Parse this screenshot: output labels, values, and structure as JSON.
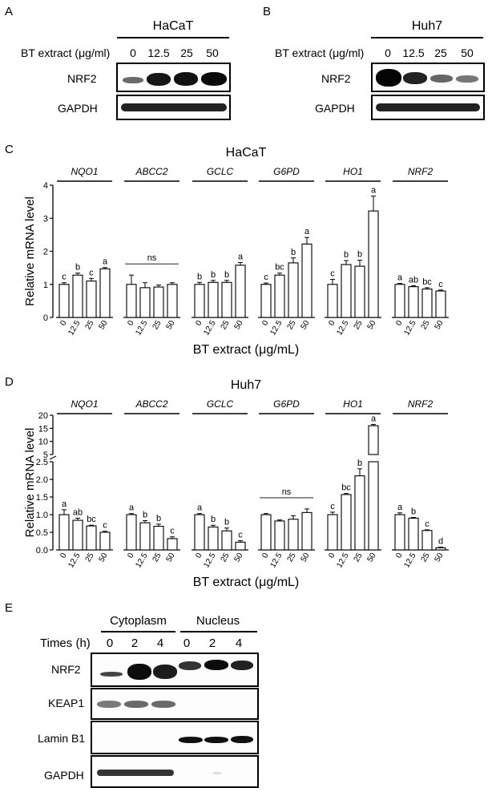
{
  "panel_labels": {
    "a": "A",
    "b": "B",
    "c": "C",
    "d": "D",
    "e": "E"
  },
  "panel_a": {
    "cell_line": "HaCaT",
    "treatment_label": "BT extract (μg/ml)",
    "doses": [
      "0",
      "12.5",
      "25",
      "50"
    ],
    "rows": [
      "NRF2",
      "GAPDH"
    ]
  },
  "panel_b": {
    "cell_line": "Huh7",
    "treatment_label": "BT extract (μg/ml)",
    "doses": [
      "0",
      "12.5",
      "25",
      "50"
    ],
    "rows": [
      "NRF2",
      "GAPDH"
    ]
  },
  "panel_e": {
    "groups": [
      "Cytoplasm",
      "Nucleus"
    ],
    "time_label": "Times (h)",
    "times": [
      "0",
      "2",
      "4",
      "0",
      "2",
      "4"
    ],
    "rows": [
      "NRF2",
      "KEAP1",
      "Lamin B1",
      "GAPDH"
    ]
  },
  "chart_data": [
    {
      "type": "bar",
      "title": "HaCaT",
      "ylabel": "Relative mRNA level",
      "xlabel": "BT extract (μg/mL)",
      "ylim": [
        0,
        4
      ],
      "yticks": [
        "0",
        "1",
        "2",
        "3",
        "4"
      ],
      "categories": [
        "0",
        "12.5",
        "25",
        "50"
      ],
      "genes": [
        {
          "name": "NQO1",
          "values": [
            1.0,
            1.28,
            1.1,
            1.47
          ],
          "errors": [
            0.05,
            0.06,
            0.08,
            0.04
          ],
          "letters": [
            "c",
            "b",
            "c",
            "a"
          ],
          "ns": ""
        },
        {
          "name": "ABCC2",
          "values": [
            1.0,
            0.9,
            0.92,
            1.0
          ],
          "errors": [
            0.28,
            0.15,
            0.06,
            0.05
          ],
          "letters": [
            "",
            "",
            "",
            ""
          ],
          "ns": "ns"
        },
        {
          "name": "GCLC",
          "values": [
            1.0,
            1.06,
            1.06,
            1.58
          ],
          "errors": [
            0.06,
            0.06,
            0.06,
            0.08
          ],
          "letters": [
            "b",
            "b",
            "b",
            "a"
          ],
          "ns": ""
        },
        {
          "name": "G6PD",
          "values": [
            1.0,
            1.28,
            1.65,
            2.22
          ],
          "errors": [
            0.04,
            0.06,
            0.15,
            0.2
          ],
          "letters": [
            "c",
            "bc",
            "b",
            "a"
          ],
          "ns": ""
        },
        {
          "name": "HO1",
          "values": [
            1.0,
            1.6,
            1.55,
            3.22
          ],
          "errors": [
            0.15,
            0.12,
            0.18,
            0.45
          ],
          "letters": [
            "c",
            "b",
            "b",
            "a"
          ],
          "ns": ""
        },
        {
          "name": "NRF2",
          "values": [
            1.0,
            0.93,
            0.86,
            0.8
          ],
          "errors": [
            0.03,
            0.03,
            0.04,
            0.03
          ],
          "letters": [
            "a",
            "ab",
            "bc",
            "c"
          ],
          "ns": ""
        }
      ]
    },
    {
      "type": "bar",
      "title": "Huh7",
      "ylabel": "Relative mRNA level",
      "xlabel": "BT extract (μg/mL)",
      "ylim": [
        0,
        20
      ],
      "y_break": [
        2.5,
        5
      ],
      "yticks_lower": [
        "0.0",
        "0.5",
        "1.0",
        "1.5",
        "2.0",
        "2.5"
      ],
      "yticks_upper": [
        "5",
        "10",
        "15",
        "20"
      ],
      "categories": [
        "0",
        "12.5",
        "25",
        "50"
      ],
      "genes": [
        {
          "name": "NQO1",
          "values": [
            1.0,
            0.84,
            0.68,
            0.5
          ],
          "errors": [
            0.14,
            0.06,
            0.02,
            0.03
          ],
          "letters": [
            "a",
            "ab",
            "bc",
            "c"
          ],
          "ns": ""
        },
        {
          "name": "ABCC2",
          "values": [
            1.0,
            0.77,
            0.67,
            0.32
          ],
          "errors": [
            0.03,
            0.06,
            0.06,
            0.05
          ],
          "letters": [
            "a",
            "b",
            "b",
            "c"
          ],
          "ns": ""
        },
        {
          "name": "GCLC",
          "values": [
            1.0,
            0.65,
            0.54,
            0.22
          ],
          "errors": [
            0.03,
            0.05,
            0.08,
            0.04
          ],
          "letters": [
            "a",
            "b",
            "b",
            "c"
          ],
          "ns": ""
        },
        {
          "name": "G6PD",
          "values": [
            1.0,
            0.82,
            0.87,
            1.06
          ],
          "errors": [
            0.03,
            0.03,
            0.1,
            0.1
          ],
          "letters": [
            "",
            "",
            "",
            ""
          ],
          "ns": "ns"
        },
        {
          "name": "HO1",
          "values": [
            1.0,
            1.57,
            2.1,
            16.0
          ],
          "errors": [
            0.07,
            0.03,
            0.2,
            0.5
          ],
          "letters": [
            "c",
            "bc",
            "b",
            "a"
          ],
          "ns": ""
        },
        {
          "name": "NRF2",
          "values": [
            1.0,
            0.9,
            0.55,
            0.06
          ],
          "errors": [
            0.05,
            0.02,
            0.02,
            0.02
          ],
          "letters": [
            "a",
            "b",
            "c",
            "d"
          ],
          "ns": ""
        }
      ]
    }
  ]
}
